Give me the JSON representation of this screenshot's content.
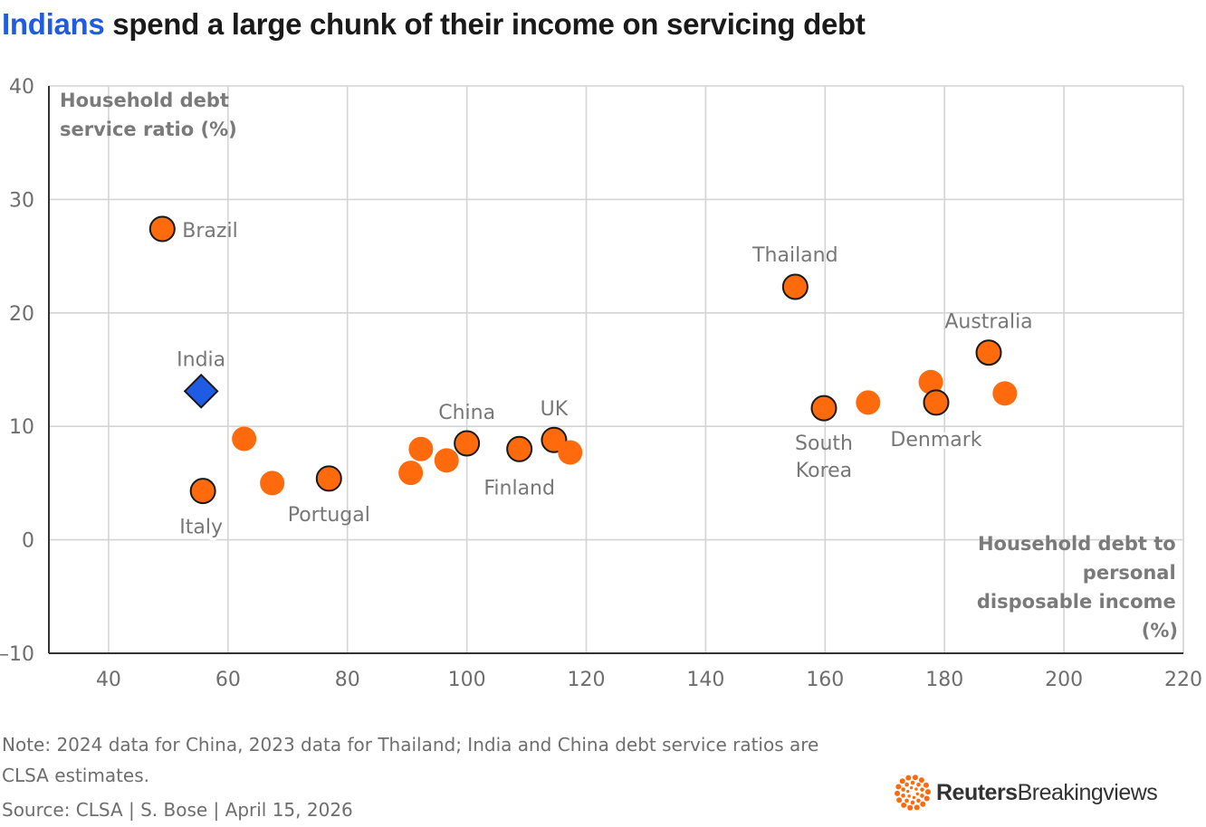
{
  "title": {
    "highlight": "Indians",
    "rest": " spend a large chunk of their income on servicing debt"
  },
  "colors": {
    "highlight": "#1f5ce3",
    "point": "#ff6a0d",
    "india": "#1f5ce3",
    "grid": "#d4d4d4",
    "axis": "#333333"
  },
  "chart_data": {
    "type": "scatter",
    "title": "Indians spend a large chunk of their income on servicing debt",
    "xlabel": "Household debt to personal disposable income (%)",
    "ylabel": "Household debt service ratio (%)",
    "xlabel_lines": [
      "Household debt to",
      "personal",
      "disposable income",
      "(%)"
    ],
    "ylabel_lines": [
      "Household debt",
      "service ratio (%)"
    ],
    "xlim": [
      30,
      220
    ],
    "ylim": [
      -10,
      40
    ],
    "xticks": [
      40,
      60,
      80,
      100,
      120,
      140,
      160,
      180,
      200,
      220
    ],
    "yticks": [
      -10,
      0,
      10,
      20,
      30,
      40
    ],
    "ytick_labels": [
      "–10",
      "0",
      "10",
      "20",
      "30",
      "40"
    ],
    "grid": true,
    "points": [
      {
        "x": 49,
        "y": 27.4,
        "label": "Brazil",
        "outlined": true
      },
      {
        "x": 55.5,
        "y": 13.1,
        "label": "India",
        "marker": "diamond",
        "outlined": true
      },
      {
        "x": 55.8,
        "y": 4.3,
        "label": "Italy",
        "outlined": true
      },
      {
        "x": 62.7,
        "y": 8.9,
        "label": ""
      },
      {
        "x": 67.4,
        "y": 5.0,
        "label": ""
      },
      {
        "x": 76.9,
        "y": 5.4,
        "label": "Portugal",
        "outlined": true
      },
      {
        "x": 90.6,
        "y": 5.9,
        "label": ""
      },
      {
        "x": 92.3,
        "y": 8.0,
        "label": ""
      },
      {
        "x": 96.6,
        "y": 7.0,
        "label": ""
      },
      {
        "x": 100,
        "y": 8.5,
        "label": "China",
        "outlined": true
      },
      {
        "x": 108.8,
        "y": 8.0,
        "label": "Finland",
        "outlined": true
      },
      {
        "x": 114.6,
        "y": 8.8,
        "label": "UK",
        "outlined": true
      },
      {
        "x": 117.3,
        "y": 7.7,
        "label": ""
      },
      {
        "x": 155,
        "y": 22.3,
        "label": "Thailand",
        "outlined": true
      },
      {
        "x": 159.8,
        "y": 11.6,
        "label": "South Korea",
        "outlined": true
      },
      {
        "x": 167.2,
        "y": 12.1,
        "label": ""
      },
      {
        "x": 177.7,
        "y": 13.9,
        "label": ""
      },
      {
        "x": 178.6,
        "y": 12.1,
        "label": "Denmark",
        "outlined": true
      },
      {
        "x": 187.4,
        "y": 16.5,
        "label": "Australia",
        "outlined": true
      },
      {
        "x": 190.1,
        "y": 12.9,
        "label": ""
      }
    ]
  },
  "footer": {
    "note_line1": "Note: 2024 data for China, 2023 data for Thailand; India and China debt service ratios are",
    "note_line2": "CLSA estimates.",
    "source": "Source: CLSA | S. Bose | April 15, 2026",
    "brand_bold": "Reuters",
    "brand_regular": "Breakingviews",
    "brand_icon": "reuters-dot-logo-icon"
  }
}
